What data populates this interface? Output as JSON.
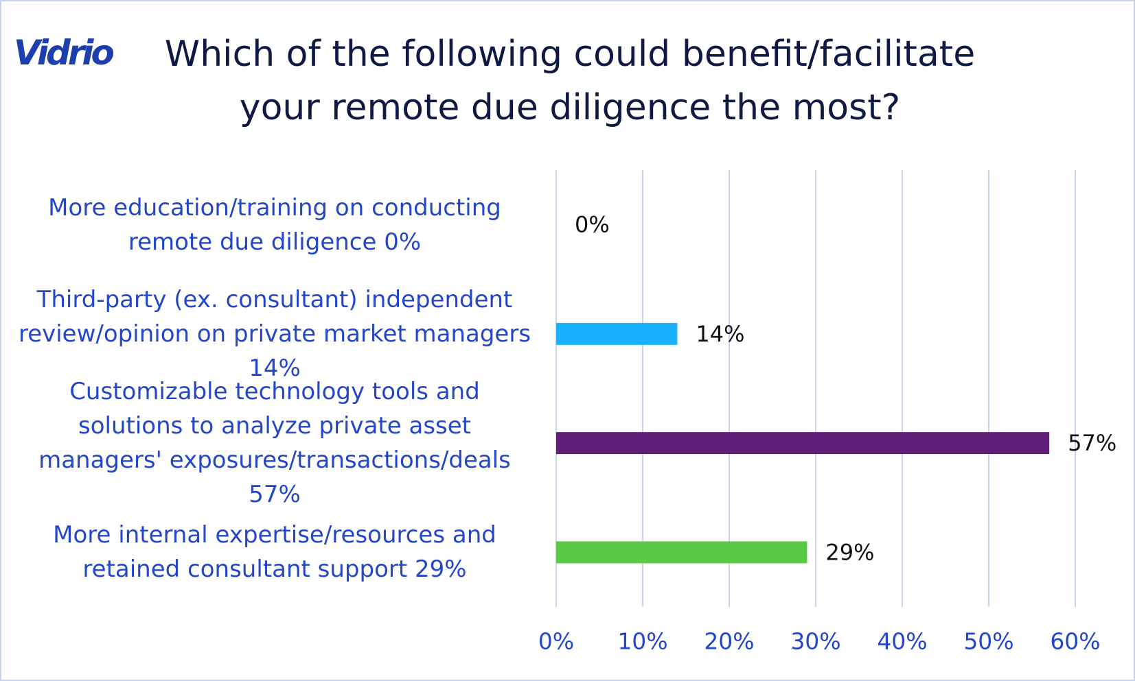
{
  "logo": "Vidrio",
  "chart_data": {
    "type": "hbar",
    "title": "Which of the following could benefit/facilitate your remote due diligence the most?",
    "categories": [
      "More education/training on conducting remote due diligence 0%",
      "Third-party (ex. consultant) independent review/opinion on private market managers 14%",
      "Customizable technology tools and solutions to analyze private asset managers' exposures/transactions/deals 57%",
      "More internal expertise/resources and retained consultant support 29%"
    ],
    "values": [
      0,
      14,
      57,
      29
    ],
    "value_labels": [
      "0%",
      "14%",
      "57%",
      "29%"
    ],
    "colors": [
      "#4472c4",
      "#1ab2ff",
      "#5f1f78",
      "#59c945"
    ],
    "xlim": [
      0,
      60
    ],
    "xticks": [
      {
        "value": 0,
        "label": "0%"
      },
      {
        "value": 10,
        "label": "10%"
      },
      {
        "value": 20,
        "label": "20%"
      },
      {
        "value": 30,
        "label": "30%"
      },
      {
        "value": 40,
        "label": "40%"
      },
      {
        "value": 50,
        "label": "50%"
      },
      {
        "value": 60,
        "label": "60%"
      }
    ],
    "grid": true
  }
}
